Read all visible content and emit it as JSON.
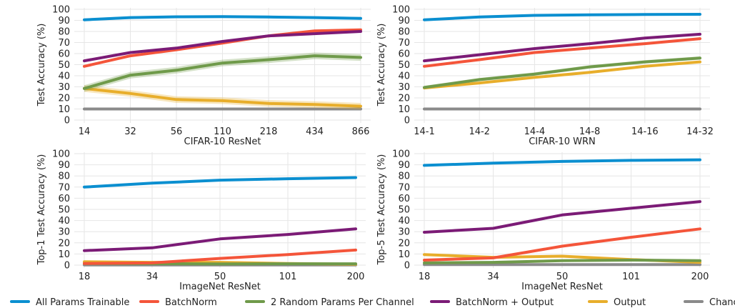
{
  "colors": {
    "all_params": "#0b8fd0",
    "batchnorm": "#f4553a",
    "random_params": "#6f9a4a",
    "bn_output": "#7b1b76",
    "output": "#e8ae2b",
    "chance": "#8a8a8a"
  },
  "legend": [
    {
      "label": "All Params Trainable",
      "color_key": "all_params"
    },
    {
      "label": "BatchNorm",
      "color_key": "batchnorm"
    },
    {
      "label": "2 Random Params Per Channel",
      "color_key": "random_params"
    },
    {
      "label": "BatchNorm + Output",
      "color_key": "bn_output"
    },
    {
      "label": "Output",
      "color_key": "output"
    },
    {
      "label": "Chance",
      "color_key": "chance"
    }
  ],
  "chart_data": [
    {
      "type": "line",
      "xlabel": "CIFAR-10 ResNet",
      "ylabel": "Test Accuracy (%)",
      "categories": [
        "14",
        "32",
        "56",
        "110",
        "218",
        "434",
        "866"
      ],
      "yticks": [
        "0",
        "10",
        "20",
        "30",
        "40",
        "50",
        "60",
        "70",
        "80",
        "90",
        "100"
      ],
      "ylim": [
        0,
        100
      ],
      "grid": true,
      "series": [
        {
          "name": "All Params Trainable",
          "color_key": "all_params",
          "values": [
            90.5,
            92.5,
            93.2,
            93.4,
            93.0,
            92.5,
            91.8
          ],
          "band": 1.2
        },
        {
          "name": "BatchNorm",
          "color_key": "batchnorm",
          "values": [
            48.5,
            58,
            63.5,
            69.5,
            76,
            80.5,
            81.5
          ],
          "band": 1.0
        },
        {
          "name": "2 Random Params Per Channel",
          "color_key": "random_params",
          "values": [
            28.5,
            40.5,
            45,
            51.5,
            54.5,
            58,
            56.5
          ],
          "band": 3.0
        },
        {
          "name": "BatchNorm + Output",
          "color_key": "bn_output",
          "values": [
            53.5,
            61,
            65,
            71,
            76,
            78,
            80
          ],
          "band": 0.8
        },
        {
          "name": "Output",
          "color_key": "output",
          "values": [
            28.5,
            24,
            18.5,
            17.5,
            15,
            14,
            12.5
          ],
          "band": 3.0
        },
        {
          "name": "Chance",
          "color_key": "chance",
          "values": [
            10,
            10,
            10,
            10,
            10,
            10,
            10
          ],
          "band": 0
        }
      ]
    },
    {
      "type": "line",
      "xlabel": "CIFAR-10 WRN",
      "ylabel": "Test Accuracy (%)",
      "categories": [
        "14-1",
        "14-2",
        "14-4",
        "14-8",
        "14-16",
        "14-32"
      ],
      "yticks": [
        "0",
        "10",
        "20",
        "30",
        "40",
        "50",
        "60",
        "70",
        "80",
        "90",
        "100"
      ],
      "ylim": [
        0,
        100
      ],
      "grid": true,
      "series": [
        {
          "name": "All Params Trainable",
          "color_key": "all_params",
          "values": [
            90.5,
            93,
            94.5,
            95,
            95.3,
            95.5
          ],
          "band": 0.8
        },
        {
          "name": "BatchNorm",
          "color_key": "batchnorm",
          "values": [
            48.5,
            54.5,
            61,
            65,
            69,
            73.5
          ],
          "band": 0.8
        },
        {
          "name": "2 Random Params Per Channel",
          "color_key": "random_params",
          "values": [
            29.5,
            36.5,
            41.5,
            48,
            52.5,
            56
          ],
          "band": 1.5
        },
        {
          "name": "BatchNorm + Output",
          "color_key": "bn_output",
          "values": [
            53.5,
            59,
            64.5,
            69,
            74,
            77.5
          ],
          "band": 0.8
        },
        {
          "name": "Output",
          "color_key": "output",
          "values": [
            29,
            33.5,
            38.5,
            43,
            48.5,
            52.5
          ],
          "band": 1.0
        },
        {
          "name": "Chance",
          "color_key": "chance",
          "values": [
            10,
            10,
            10,
            10,
            10,
            10
          ],
          "band": 0
        }
      ]
    },
    {
      "type": "line",
      "xlabel": "ImageNet ResNet",
      "ylabel": "Top-1 Test Accuracy (%)",
      "categories": [
        "18",
        "34",
        "50",
        "101",
        "200"
      ],
      "yticks": [
        "0",
        "10",
        "20",
        "30",
        "40",
        "50",
        "60",
        "70",
        "80",
        "90",
        "100"
      ],
      "ylim": [
        0,
        100
      ],
      "grid": true,
      "series": [
        {
          "name": "All Params Trainable",
          "color_key": "all_params",
          "values": [
            70,
            73.5,
            76.2,
            77.5,
            78.5
          ],
          "band": 0
        },
        {
          "name": "BatchNorm",
          "color_key": "batchnorm",
          "values": [
            1.5,
            2,
            6,
            9.5,
            13.5
          ],
          "band": 0
        },
        {
          "name": "2 Random Params Per Channel",
          "color_key": "random_params",
          "values": [
            1.5,
            1.3,
            1,
            1.2,
            1.2
          ],
          "band": 0
        },
        {
          "name": "BatchNorm + Output",
          "color_key": "bn_output",
          "values": [
            13,
            15.5,
            23.5,
            27.5,
            32.5
          ],
          "band": 0
        },
        {
          "name": "Output",
          "color_key": "output",
          "values": [
            3,
            2.5,
            2.5,
            1.5,
            0.8
          ],
          "band": 0
        },
        {
          "name": "Chance",
          "color_key": "chance",
          "values": [
            0.1,
            0.1,
            0.1,
            0.1,
            0.1
          ],
          "band": 0
        }
      ]
    },
    {
      "type": "line",
      "xlabel": "ImageNet ResNet",
      "ylabel": "Top-5 Test Accuracy (%)",
      "categories": [
        "18",
        "34",
        "50",
        "101",
        "200"
      ],
      "yticks": [
        "0",
        "10",
        "20",
        "30",
        "40",
        "50",
        "60",
        "70",
        "80",
        "90",
        "100"
      ],
      "ylim": [
        0,
        100
      ],
      "grid": true,
      "series": [
        {
          "name": "All Params Trainable",
          "color_key": "all_params",
          "values": [
            89.5,
            91.5,
            93,
            94,
            94.5
          ],
          "band": 0
        },
        {
          "name": "BatchNorm",
          "color_key": "batchnorm",
          "values": [
            4.5,
            6.5,
            17,
            25,
            32.5
          ],
          "band": 0
        },
        {
          "name": "2 Random Params Per Channel",
          "color_key": "random_params",
          "values": [
            2,
            2.5,
            4,
            4.5,
            4
          ],
          "band": 0
        },
        {
          "name": "BatchNorm + Output",
          "color_key": "bn_output",
          "values": [
            29.5,
            33,
            45,
            51,
            57
          ],
          "band": 0
        },
        {
          "name": "Output",
          "color_key": "output",
          "values": [
            9.5,
            7,
            8,
            5,
            2.5
          ],
          "band": 0
        },
        {
          "name": "Chance",
          "color_key": "chance",
          "values": [
            0.5,
            0.5,
            0.5,
            0.5,
            0.5
          ],
          "band": 0
        }
      ]
    }
  ]
}
